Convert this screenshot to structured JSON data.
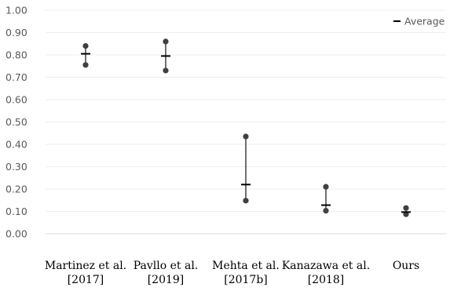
{
  "chart_data": {
    "type": "scatter",
    "categories": [
      [
        "Martinez et al.",
        "[2017]"
      ],
      [
        "Pavllo et al.",
        "[2019]"
      ],
      [
        "Mehta et al.",
        "[2017b]"
      ],
      [
        "Kanazawa et al.",
        "[2018]"
      ],
      [
        "Ours"
      ]
    ],
    "series": [
      {
        "name": "",
        "role": "max",
        "values": [
          0.84,
          0.86,
          0.435,
          0.21,
          0.115
        ]
      },
      {
        "name": "Average",
        "role": "average",
        "values": [
          0.805,
          0.795,
          0.22,
          0.128,
          0.097
        ]
      },
      {
        "name": "",
        "role": "min",
        "values": [
          0.755,
          0.73,
          0.148,
          0.103,
          0.087
        ]
      }
    ],
    "yticks": [
      "0.00",
      "0.10",
      "0.20",
      "0.30",
      "0.40",
      "0.50",
      "0.60",
      "0.70",
      "0.80",
      "0.90",
      "1.00"
    ],
    "ylim": [
      0,
      1
    ],
    "grid": true,
    "legend": {
      "position": "top-right",
      "label": "Average"
    },
    "colors": {
      "points": "#404040",
      "average": "#000000",
      "grid": "#eeeeee",
      "axis": "#d9d9d9"
    }
  }
}
